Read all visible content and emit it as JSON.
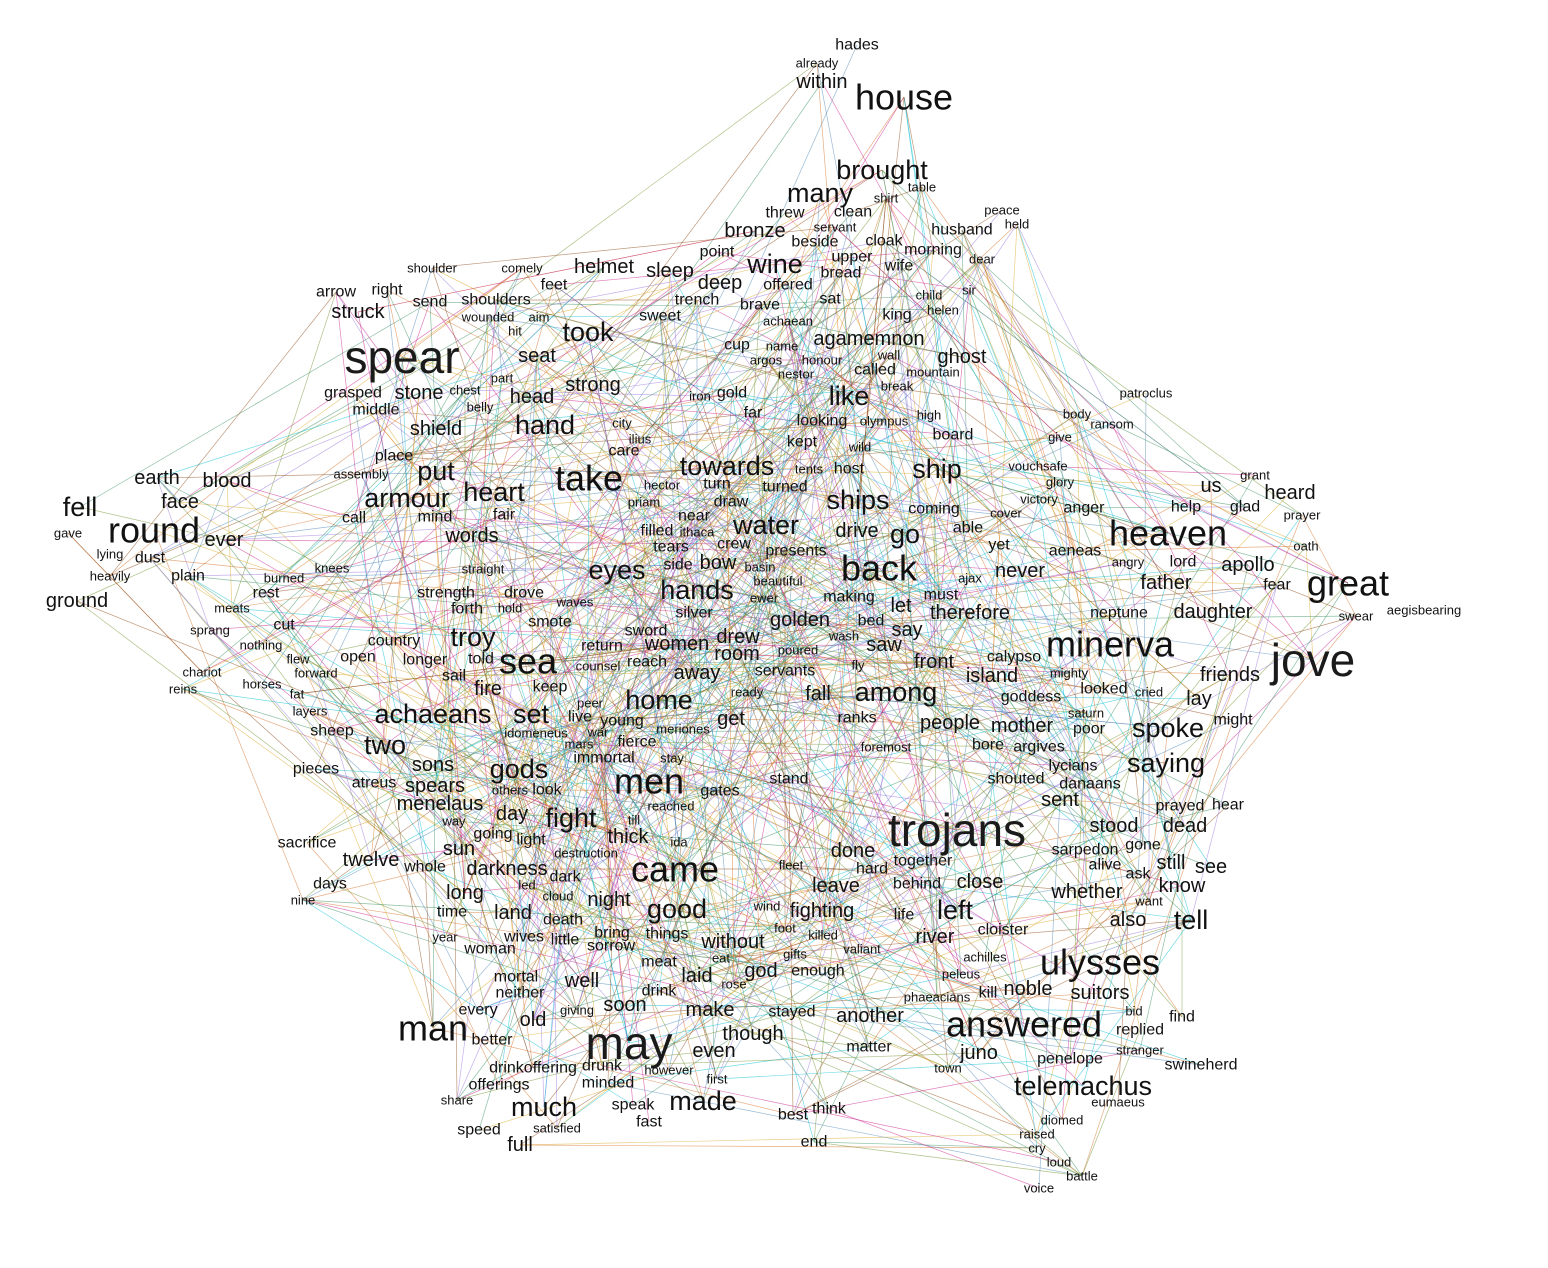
{
  "edge_colors": [
    "#6b8e23",
    "#d2691e",
    "#c71585",
    "#00bcd4",
    "#2e8b57",
    "#8b4513",
    "#9370db",
    "#4682b4",
    "#daa520"
  ],
  "words": [
    "hades",
    "already",
    "within",
    "house",
    "brought",
    "table",
    "shirt",
    "many",
    "threw",
    "clean",
    "servant",
    "bronze",
    "beside",
    "cloak",
    "peace",
    "held",
    "husband",
    "morning",
    "dear",
    "upper",
    "wife",
    "bread",
    "wine",
    "helmet",
    "sleep",
    "point",
    "shoulder",
    "comely",
    "deep",
    "offered",
    "feet",
    "arrow",
    "right",
    "send",
    "shoulders",
    "struck",
    "wounded",
    "aim",
    "hit",
    "trench",
    "brave",
    "sat",
    "child",
    "helen",
    "sir",
    "sweet",
    "achaean",
    "king",
    "took",
    "spear",
    "seat",
    "cup",
    "name",
    "agamemnon",
    "argos",
    "honour",
    "nestor",
    "wall",
    "ghost",
    "called",
    "mountain",
    "break",
    "strong",
    "grasped",
    "chest",
    "part",
    "stone",
    "middle",
    "belly",
    "head",
    "iron",
    "gold",
    "like",
    "far",
    "patroclus",
    "body",
    "ransom",
    "give",
    "hand",
    "shield",
    "city",
    "ilius",
    "looking",
    "olympus",
    "high",
    "board",
    "kept",
    "wild",
    "place",
    "care",
    "earth",
    "blood",
    "assembly",
    "tents",
    "host",
    "towards",
    "ship",
    "put",
    "take",
    "heart",
    "hector",
    "turn",
    "turned",
    "vouchsafe",
    "grant",
    "priam",
    "draw",
    "glory",
    "victory",
    "face",
    "armour",
    "coming",
    "anger",
    "us",
    "heard",
    "fell",
    "call",
    "mind",
    "fair",
    "filled",
    "near",
    "ships",
    "cover",
    "help",
    "glad",
    "prayer",
    "round",
    "ithaca",
    "drive",
    "able",
    "heaven",
    "gave",
    "ever",
    "words",
    "tears",
    "crew",
    "water",
    "go",
    "oath",
    "lying",
    "dust",
    "presents",
    "yet",
    "aeneas",
    "angry",
    "lord",
    "apollo",
    "knees",
    "straight",
    "eyes",
    "bow",
    "back",
    "never",
    "heavily",
    "plain",
    "burned",
    "beautiful",
    "basin",
    "side",
    "father",
    "fear",
    "great",
    "ground",
    "rest",
    "strength",
    "drove",
    "ewer",
    "hands",
    "making",
    "must",
    "ajax",
    "meats",
    "forth",
    "hold",
    "waves",
    "silver",
    "let",
    "therefore",
    "neptune",
    "daughter",
    "swear",
    "aegisbearing",
    "sprang",
    "cut",
    "smote",
    "sword",
    "golden",
    "bed",
    "say",
    "nothing",
    "country",
    "return",
    "drew",
    "wash",
    "minerva",
    "jove",
    "chariot",
    "flew",
    "open",
    "longer",
    "troy",
    "told",
    "women",
    "room",
    "saw",
    "calypso",
    "reins",
    "forward",
    "sea",
    "counsel",
    "reach",
    "poured",
    "front",
    "mighty",
    "horses",
    "sail",
    "keep",
    "away",
    "servants",
    "fly",
    "island",
    "friends",
    "fat",
    "fire",
    "peer",
    "home",
    "fall",
    "among",
    "looked",
    "cried",
    "layers",
    "achaeans",
    "set",
    "live",
    "young",
    "ready",
    "goddess",
    "lay",
    "get",
    "ranks",
    "people",
    "mother",
    "might",
    "sheep",
    "idomeneus",
    "war",
    "meriones",
    "bore",
    "saturn",
    "poor",
    "spoke",
    "mars",
    "fierce",
    "two",
    "foremost",
    "argives",
    "immortal",
    "stay",
    "sons",
    "gods",
    "men",
    "lycians",
    "pieces",
    "saying",
    "danaans",
    "atreus",
    "spears",
    "others",
    "look",
    "stand",
    "shouted",
    "menelaus",
    "gates",
    "sent",
    "prayed",
    "hear",
    "reached",
    "day",
    "way",
    "fight",
    "till",
    "trojans",
    "stood",
    "dead",
    "sacrifice",
    "going",
    "light",
    "thick",
    "sun",
    "ida",
    "sarpedon",
    "gone",
    "destruction",
    "done",
    "twelve",
    "whole",
    "darkness",
    "came",
    "fleet",
    "hard",
    "together",
    "alive",
    "still",
    "see",
    "dark",
    "ask",
    "days",
    "led",
    "close",
    "whether",
    "know",
    "long",
    "behind",
    "leave",
    "cloud",
    "night",
    "want",
    "nine",
    "time",
    "land",
    "good",
    "wind",
    "fighting",
    "left",
    "also",
    "tell",
    "death",
    "life",
    "bring",
    "wives",
    "sorrow",
    "things",
    "without",
    "year",
    "little",
    "foot",
    "killed",
    "river",
    "cloister",
    "woman",
    "gifts",
    "valiant",
    "eat",
    "meat",
    "ulysses",
    "god",
    "achilles",
    "mortal",
    "laid",
    "rose",
    "drink",
    "enough",
    "peleus",
    "well",
    "neither",
    "kill",
    "noble",
    "phaeacians",
    "suitors",
    "every",
    "giving",
    "soon",
    "make",
    "stayed",
    "another",
    "bid",
    "find",
    "old",
    "man",
    "better",
    "may",
    "though",
    "answered",
    "replied",
    "juno",
    "matter",
    "even",
    "stranger",
    "drinkoffering",
    "drunk",
    "however",
    "town",
    "swineherd",
    "penelope",
    "offerings",
    "first",
    "minded",
    "much",
    "speak",
    "made",
    "telemachus",
    "eumaeus",
    "share",
    "think",
    "best",
    "diomed",
    "speed",
    "satisfied",
    "fast",
    "end",
    "raised",
    "full",
    "cry",
    "loud",
    "battle",
    "voice"
  ]
}
